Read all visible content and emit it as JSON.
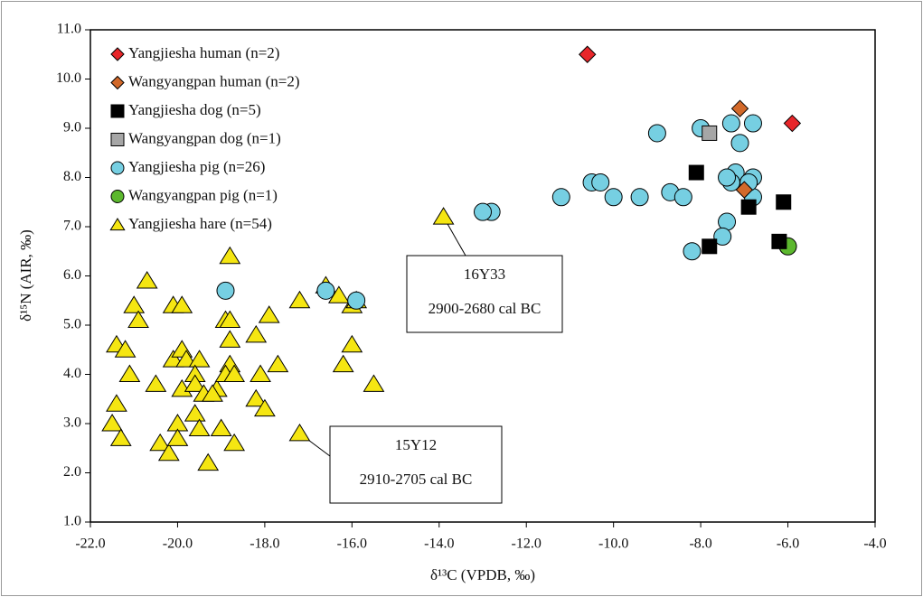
{
  "chart_data": {
    "type": "scatter",
    "xlabel": "δ¹³C (VPDB, ‰)",
    "ylabel": "δ¹⁵N (AIR, ‰)",
    "xlim": [
      -22,
      -4
    ],
    "ylim": [
      1,
      11
    ],
    "xticks": [
      {
        "value": -22,
        "label": "-22.0"
      },
      {
        "value": -20,
        "label": "-20.0"
      },
      {
        "value": -18,
        "label": "-18.0"
      },
      {
        "value": -16,
        "label": "-16.0"
      },
      {
        "value": -14,
        "label": "-14.0"
      },
      {
        "value": -12,
        "label": "-12.0"
      },
      {
        "value": -10,
        "label": "-10.0"
      },
      {
        "value": -8,
        "label": "-8.0"
      },
      {
        "value": -6,
        "label": "-6.0"
      },
      {
        "value": -4,
        "label": "-4.0"
      }
    ],
    "yticks": [
      {
        "value": 1,
        "label": "1.0"
      },
      {
        "value": 2,
        "label": "2.0"
      },
      {
        "value": 3,
        "label": "3.0"
      },
      {
        "value": 4,
        "label": "4.0"
      },
      {
        "value": 5,
        "label": "5.0"
      },
      {
        "value": 6,
        "label": "6.0"
      },
      {
        "value": 7,
        "label": "7.0"
      },
      {
        "value": 8,
        "label": "8.0"
      },
      {
        "value": 9,
        "label": "9.0"
      },
      {
        "value": 10,
        "label": "10.0"
      },
      {
        "value": 11,
        "label": "11.0"
      }
    ],
    "legend": "top-left",
    "series": [
      {
        "name": "Yangjiesha human (n=2)",
        "color": "#e8262a",
        "marker": "diamond",
        "x": [
          -10.6,
          -5.9
        ],
        "y": [
          10.5,
          9.1
        ]
      },
      {
        "name": "Wangyangpan human (n=2)",
        "color": "#d2692a",
        "marker": "diamond",
        "x": [
          -7.1,
          -7.0
        ],
        "y": [
          9.4,
          7.75
        ]
      },
      {
        "name": "Yangjiesha dog (n=5)",
        "color": "#000000",
        "marker": "square",
        "x": [
          -8.1,
          -6.9,
          -6.1,
          -7.8,
          -6.2
        ],
        "y": [
          8.1,
          7.4,
          7.5,
          6.6,
          6.7
        ]
      },
      {
        "name": "Wangyangpan dog (n=1)",
        "color": "#a6a6a6",
        "marker": "square",
        "x": [
          -7.8
        ],
        "y": [
          8.9
        ]
      },
      {
        "name": "Yangjiesha pig (n=26)",
        "color": "#76cfe2",
        "marker": "circle",
        "x": [
          -9.0,
          -8.0,
          -7.3,
          -6.8,
          -7.1,
          -7.2,
          -6.8,
          -7.3,
          -6.8,
          -7.4,
          -7.5,
          -8.2,
          -8.7,
          -8.4,
          -9.4,
          -10.0,
          -10.5,
          -10.3,
          -11.2,
          -12.8,
          -13.0,
          -16.6,
          -15.9,
          -18.9,
          -7.4,
          -6.9
        ],
        "y": [
          8.9,
          9.0,
          9.1,
          9.1,
          8.7,
          8.1,
          8.0,
          7.9,
          7.6,
          7.1,
          6.8,
          6.5,
          7.7,
          7.6,
          7.6,
          7.6,
          7.9,
          7.9,
          7.6,
          7.3,
          7.3,
          5.7,
          5.5,
          5.7,
          8.0,
          7.9
        ]
      },
      {
        "name": "Wangyangpan pig (n=1)",
        "color": "#5cb82e",
        "marker": "circle",
        "x": [
          -6.0
        ],
        "y": [
          6.6
        ]
      },
      {
        "name": "Yangjiesha hare (n=54)",
        "color": "#f5e612",
        "marker": "triangle",
        "x": [
          -13.9,
          -17.2,
          -18.8,
          -20.7,
          -21.0,
          -20.9,
          -20.1,
          -19.9,
          -21.4,
          -21.2,
          -21.1,
          -21.4,
          -21.5,
          -21.3,
          -20.5,
          -20.4,
          -20.2,
          -20.0,
          -20.0,
          -19.9,
          -20.1,
          -19.9,
          -19.8,
          -19.5,
          -19.6,
          -19.6,
          -19.4,
          -19.6,
          -19.5,
          -19.3,
          -19.1,
          -19.0,
          -18.9,
          -18.8,
          -18.8,
          -18.8,
          -18.9,
          -18.7,
          -18.7,
          -18.2,
          -18.2,
          -18.1,
          -18.0,
          -17.9,
          -17.7,
          -17.2,
          -16.6,
          -16.3,
          -16.0,
          -15.9,
          -16.2,
          -16.0,
          -15.5,
          -19.2
        ],
        "y": [
          7.2,
          2.8,
          6.4,
          5.9,
          5.4,
          5.1,
          5.4,
          5.4,
          4.6,
          4.5,
          4.0,
          3.4,
          3.0,
          2.7,
          3.8,
          2.6,
          2.4,
          3.0,
          2.7,
          3.7,
          4.3,
          4.5,
          4.3,
          4.3,
          4.0,
          3.8,
          3.6,
          3.2,
          2.9,
          2.2,
          3.7,
          2.9,
          5.1,
          5.1,
          4.7,
          4.2,
          4.0,
          4.0,
          2.6,
          4.8,
          3.5,
          4.0,
          3.3,
          5.2,
          4.2,
          5.5,
          5.8,
          5.6,
          5.4,
          5.5,
          4.2,
          4.6,
          3.8,
          3.6
        ]
      }
    ],
    "annotations": [
      {
        "label": "16Y33",
        "period": "2900-2680 cal BC"
      },
      {
        "label": "15Y12",
        "period": "2910-2705 cal BC"
      }
    ]
  }
}
